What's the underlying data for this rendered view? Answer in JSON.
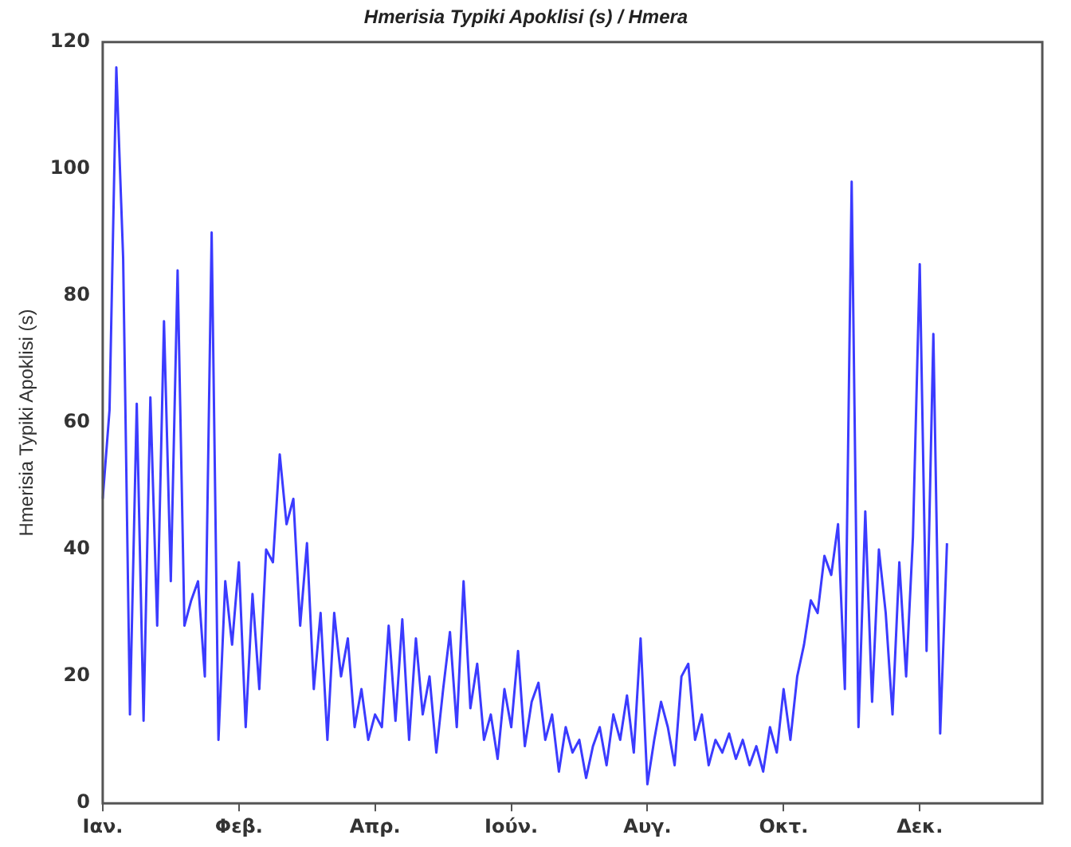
{
  "chart_data": {
    "type": "line",
    "title": "Hmerisia Typiki Apoklisi (s) / Hmera",
    "ylabel": "Hmerisia Typiki Apoklisi (s)",
    "categories": [
      "Ιαν.",
      null,
      null,
      null,
      null,
      null,
      null,
      null,
      null,
      null,
      null,
      null,
      null,
      null,
      null,
      null,
      null,
      null,
      null,
      null,
      "Φεβ.",
      null,
      null,
      null,
      null,
      null,
      null,
      null,
      null,
      null,
      null,
      null,
      null,
      null,
      null,
      null,
      null,
      null,
      null,
      null,
      "Απρ.",
      null,
      null,
      null,
      null,
      null,
      null,
      null,
      null,
      null,
      null,
      null,
      null,
      null,
      null,
      null,
      null,
      null,
      null,
      null,
      "Ιούν.",
      null,
      null,
      null,
      null,
      null,
      null,
      null,
      null,
      null,
      null,
      null,
      null,
      null,
      null,
      null,
      null,
      null,
      null,
      null,
      "Αυγ.",
      null,
      null,
      null,
      null,
      null,
      null,
      null,
      null,
      null,
      null,
      null,
      null,
      null,
      null,
      null,
      null,
      null,
      null,
      null,
      "Οκτ.",
      null,
      null,
      null,
      null,
      null,
      null,
      null,
      null,
      null,
      null,
      null,
      null,
      null,
      null,
      null,
      null,
      null,
      null,
      null,
      "Δεκ.",
      null,
      null,
      null,
      null,
      null,
      null,
      null,
      null,
      null,
      null,
      null,
      null,
      null,
      null,
      null,
      null,
      null,
      null
    ],
    "ylim": [
      0,
      120
    ],
    "yticks": [
      0,
      20,
      40,
      60,
      80,
      100,
      120
    ],
    "grid": false,
    "legend": false,
    "marker": "none",
    "line_style": "solid",
    "series": [
      {
        "color": "#3b3bff",
        "values": [
          48,
          62,
          116,
          86,
          14,
          63,
          13,
          64,
          28,
          76,
          35,
          84,
          28,
          32,
          35,
          20,
          90,
          10,
          35,
          25,
          38,
          12,
          33,
          18,
          40,
          38,
          55,
          44,
          48,
          28,
          41,
          18,
          30,
          10,
          30,
          20,
          26,
          12,
          18,
          10,
          14,
          12,
          28,
          13,
          29,
          10,
          26,
          14,
          20,
          8,
          18,
          27,
          12,
          35,
          15,
          22,
          10,
          14,
          7,
          18,
          12,
          24,
          9,
          16,
          19,
          10,
          14,
          5,
          12,
          8,
          10,
          4,
          9,
          12,
          6,
          14,
          10,
          17,
          8,
          26,
          3,
          10,
          16,
          12,
          6,
          20,
          22,
          10,
          14,
          6,
          10,
          8,
          11,
          7,
          10,
          6,
          9,
          5,
          12,
          8,
          18,
          10,
          20,
          25,
          32,
          30,
          39,
          36,
          44,
          18,
          98,
          12,
          46,
          16,
          40,
          30,
          14,
          38,
          20,
          42,
          85,
          24,
          74,
          11,
          41,
          null,
          null,
          null,
          null,
          null,
          null,
          null,
          null,
          null,
          null,
          null,
          null,
          null,
          null
        ]
      }
    ]
  }
}
